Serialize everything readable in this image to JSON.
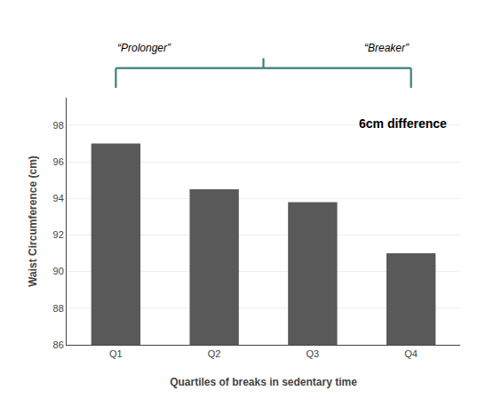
{
  "chart_data": {
    "type": "bar",
    "categories": [
      "Q1",
      "Q2",
      "Q3",
      "Q4"
    ],
    "values": [
      97.0,
      94.5,
      93.8,
      91.0
    ],
    "color": "#595959",
    "xlabel": "Quartiles of breaks in sedentary time",
    "ylabel": "Waist Circumference (cm)",
    "ylim": [
      86,
      99.5
    ],
    "yticks": [
      86,
      88,
      90,
      92,
      94,
      96,
      98
    ],
    "grid": true,
    "annotations": [
      "6cm difference",
      "“Prolonger”",
      "“Breaker”"
    ]
  }
}
